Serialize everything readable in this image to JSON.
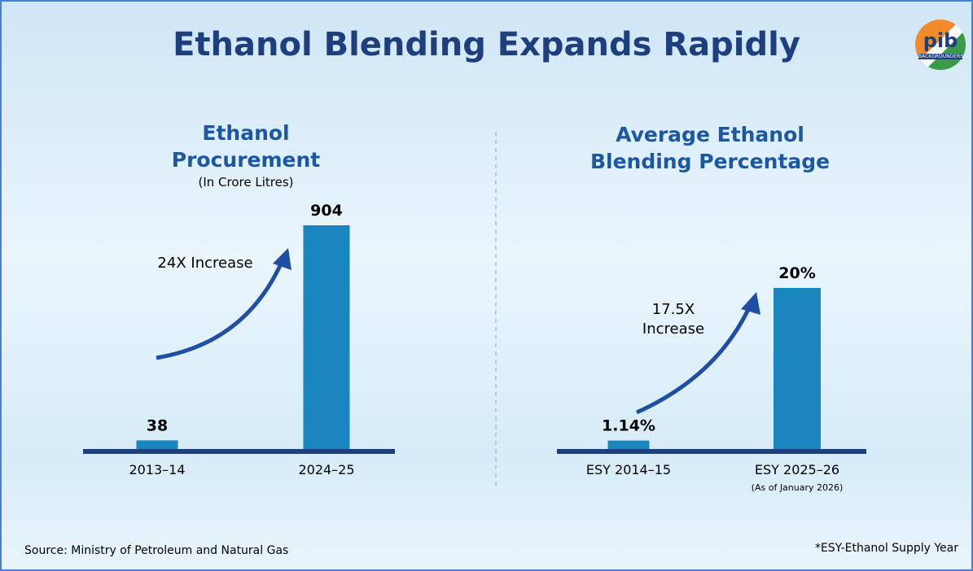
{
  "header": {
    "title": "Ethanol Blending Expands Rapidly",
    "logo": "pib",
    "logo_sub": "BACKGROUNDERS"
  },
  "chart_data": [
    {
      "type": "bar",
      "title": "Ethanol Procurement",
      "subtitle": "(In Crore Litres)",
      "categories": [
        "2013–14",
        "2024–25"
      ],
      "values": [
        38,
        904
      ],
      "color": "#1a86bf",
      "annotation": "24X Increase"
    },
    {
      "type": "bar",
      "title": "Average Ethanol Blending Percentage",
      "categories": [
        "ESY 2014–15",
        "ESY 2025–26"
      ],
      "values": [
        1.14,
        20
      ],
      "value_labels": [
        "1.14%",
        "20%"
      ],
      "x_note": "(As of January 2026)",
      "color": "#1a86bf",
      "annotation": "17.5X Increase"
    }
  ],
  "footer": {
    "source": "Source: Ministry of Petroleum and Natural Gas",
    "note": "*ESY-Ethanol Supply Year"
  }
}
